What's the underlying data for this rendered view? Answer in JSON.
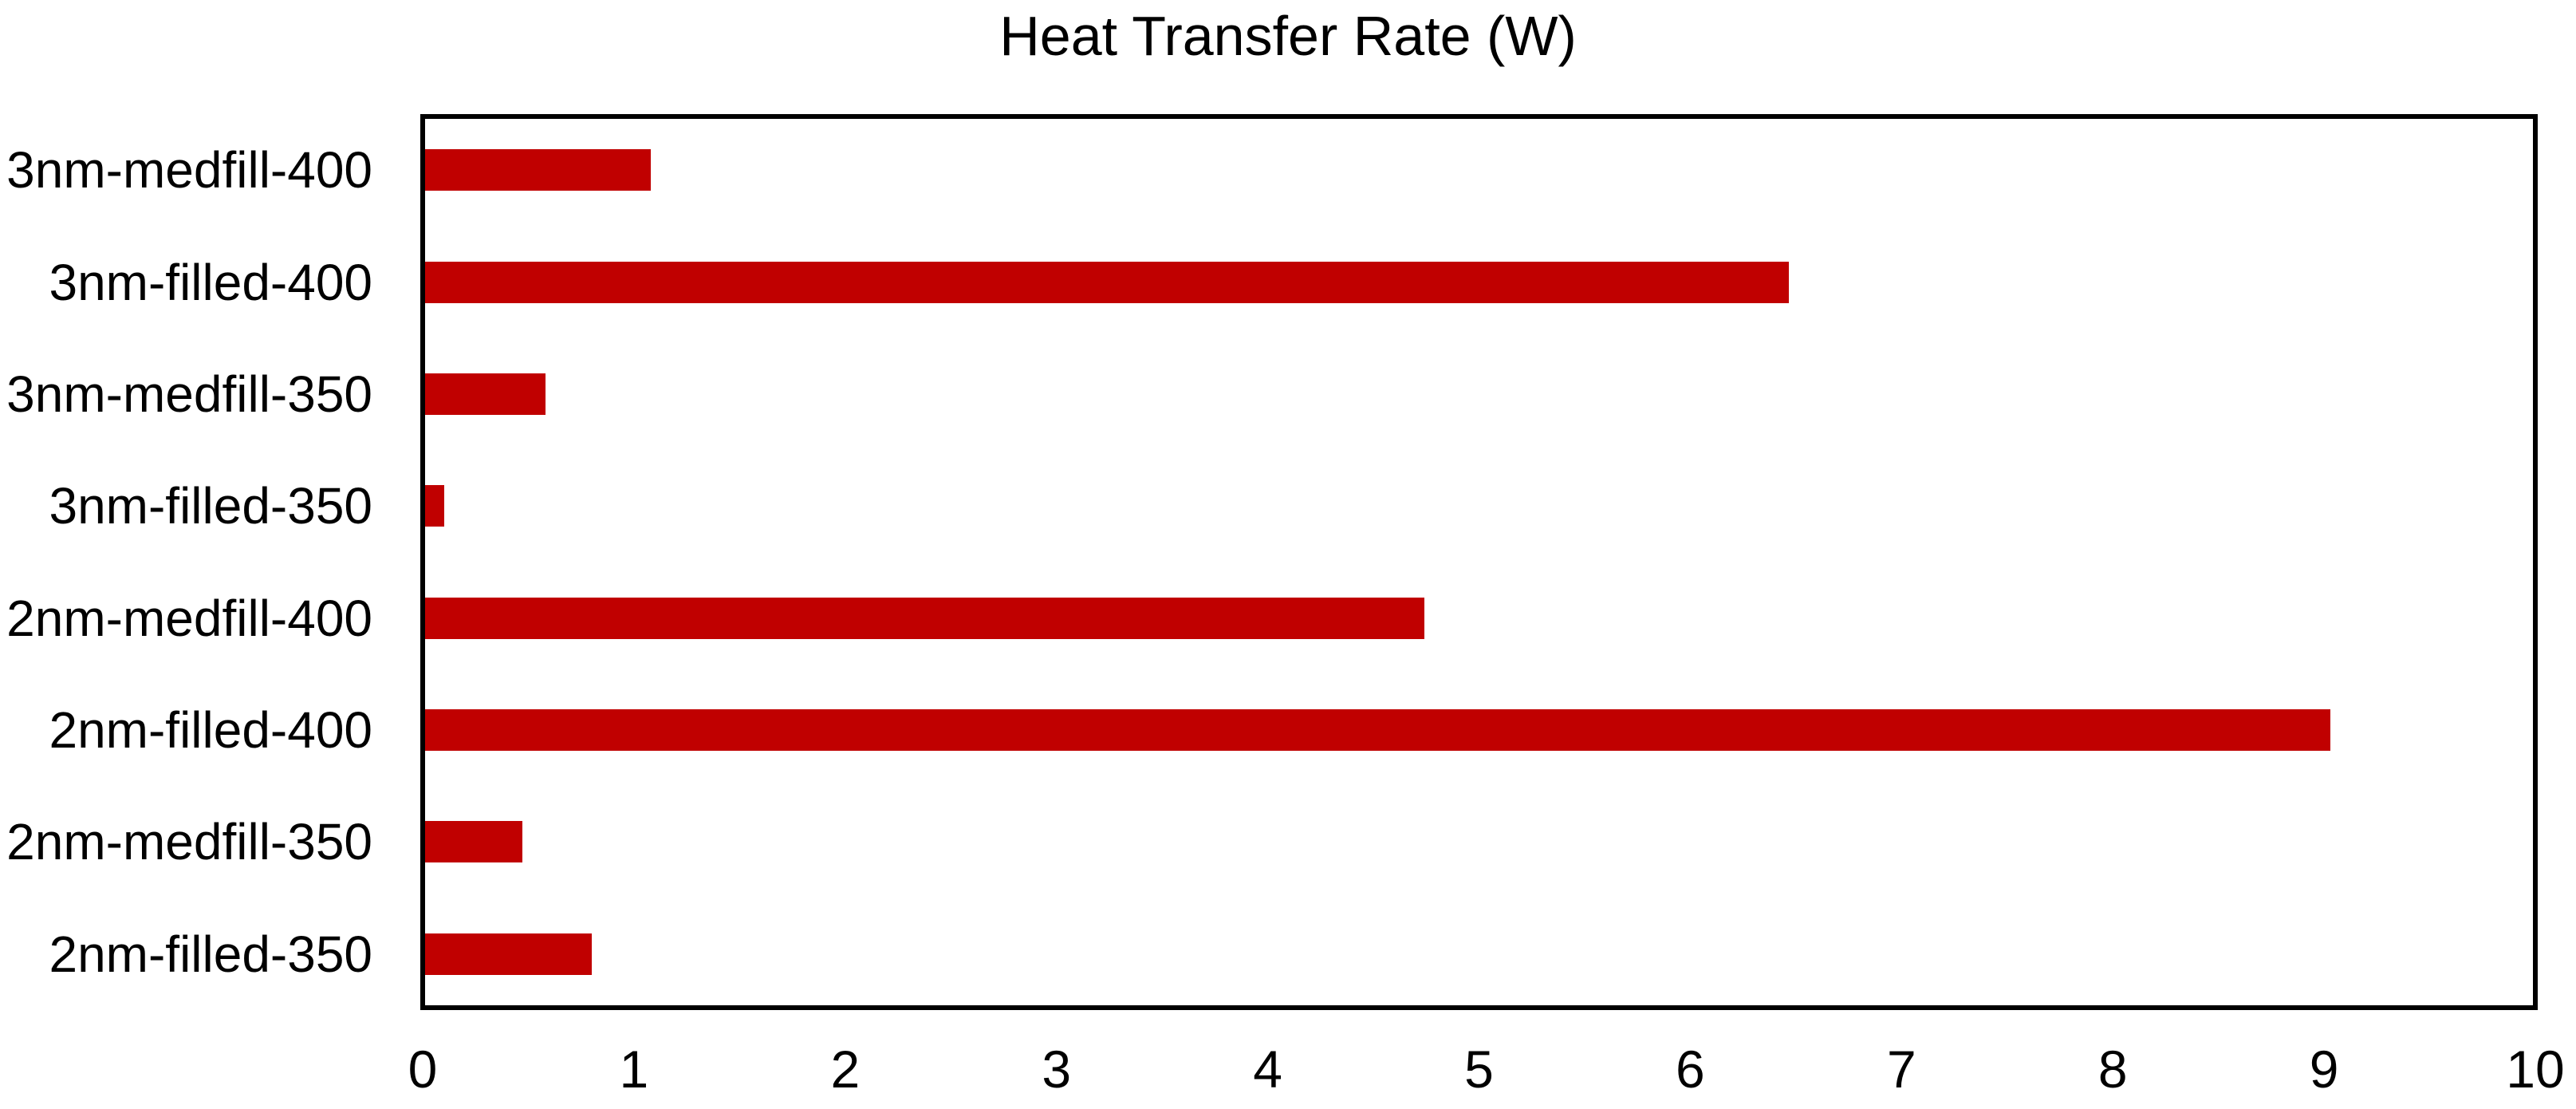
{
  "chart_data": {
    "type": "bar",
    "orientation": "horizontal",
    "title": "Heat Transfer Rate (W)",
    "categories": [
      "3nm-medfill-400",
      "3nm-filled-400",
      "3nm-medfill-350",
      "3nm-filled-350",
      "2nm-medfill-400",
      "2nm-filled-400",
      "2nm-medfill-350",
      "2nm-filled-350"
    ],
    "values": [
      1.07,
      6.47,
      0.57,
      0.09,
      4.74,
      9.04,
      0.46,
      0.79
    ],
    "xlabel": "",
    "ylabel": "",
    "xlim": [
      0,
      10
    ],
    "x_ticks": [
      "0",
      "1",
      "2",
      "3",
      "4",
      "5",
      "6",
      "7",
      "8",
      "9",
      "10"
    ],
    "grid": false,
    "legend_position": "none",
    "bar_color": "#c00000",
    "axis_color": "#000000",
    "background_color": "#ffffff"
  }
}
